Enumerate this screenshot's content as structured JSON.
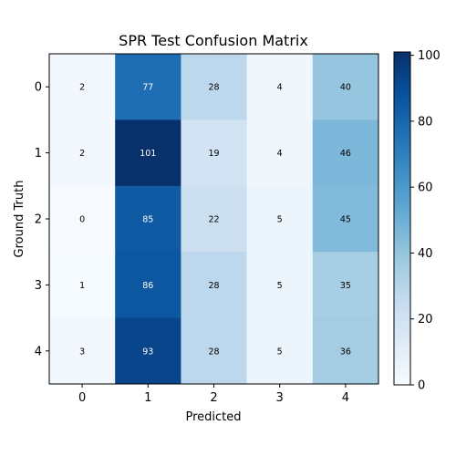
{
  "chart_data": {
    "type": "heatmap",
    "title": "SPR Test Confusion Matrix",
    "xlabel": "Predicted",
    "ylabel": "Ground Truth",
    "x_categories": [
      "0",
      "1",
      "2",
      "3",
      "4"
    ],
    "y_categories": [
      "0",
      "1",
      "2",
      "3",
      "4"
    ],
    "values": [
      [
        2,
        77,
        28,
        4,
        40
      ],
      [
        2,
        101,
        19,
        4,
        46
      ],
      [
        0,
        85,
        22,
        5,
        45
      ],
      [
        1,
        86,
        28,
        5,
        35
      ],
      [
        3,
        93,
        28,
        5,
        36
      ]
    ],
    "colormap": "Blues",
    "colorbar": {
      "min": 0,
      "max": 101,
      "ticks": [
        "0",
        "20",
        "40",
        "60",
        "80",
        "100"
      ]
    },
    "grid": false
  }
}
